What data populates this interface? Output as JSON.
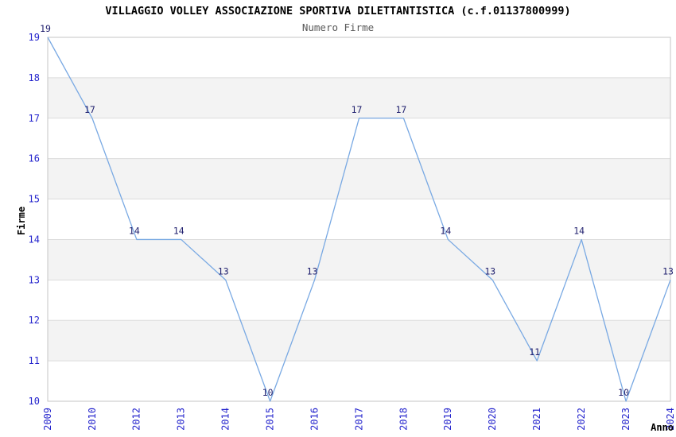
{
  "chart_data": {
    "type": "line",
    "title": "VILLAGGIO VOLLEY ASSOCIAZIONE SPORTIVA DILETTANTISTICA (c.f.01137800999)",
    "subtitle": "Numero Firme",
    "xlabel": "Anno",
    "ylabel": "Firme",
    "categories": [
      "2009",
      "2010",
      "2012",
      "2013",
      "2014",
      "2015",
      "2016",
      "2017",
      "2018",
      "2019",
      "2020",
      "2021",
      "2022",
      "2023",
      "2024"
    ],
    "values": [
      19,
      17,
      14,
      14,
      13,
      10,
      13,
      17,
      17,
      14,
      13,
      11,
      14,
      10,
      13
    ],
    "ylim": [
      10,
      19
    ],
    "yticks": [
      10,
      11,
      12,
      13,
      14,
      15,
      16,
      17,
      18,
      19
    ],
    "grid": true,
    "legend": "none",
    "band_pairs": [
      [
        11,
        12
      ],
      [
        13,
        14
      ],
      [
        15,
        16
      ],
      [
        17,
        18
      ]
    ],
    "colors": {
      "line": "#79a9e3",
      "tick_label": "#2525cd",
      "value_label": "#1f1f6e",
      "grid": "#dcdcdc",
      "band": "#f3f3f3",
      "border": "#c6c6c6",
      "title": "#000000",
      "subtitle": "#595959"
    }
  }
}
